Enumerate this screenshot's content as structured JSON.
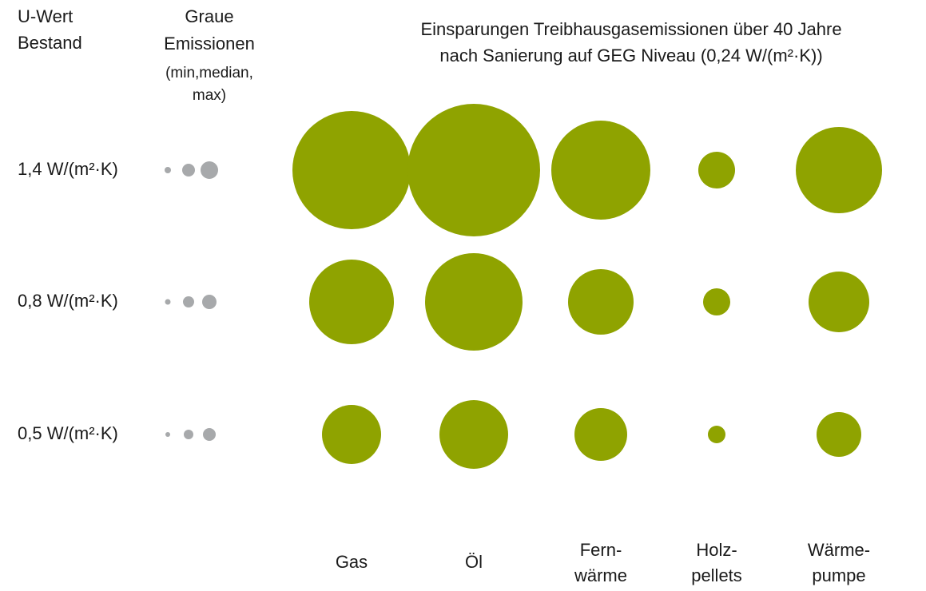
{
  "chart_data": {
    "type": "bubble",
    "title": [
      "Einsparungen Treibhausgasemissionen über 40 Jahre",
      "nach Sanierung auf  GEG Niveau (0,24 W/(m²·K))"
    ],
    "row_header": [
      "U-Wert",
      "Bestand"
    ],
    "grey_header": [
      "Graue",
      "Emissionen"
    ],
    "grey_subheader": [
      "(min,median,",
      "max)"
    ],
    "rows": [
      "1,4 W/(m²·K)",
      "0,8 W/(m²·K)",
      "0,5 W/(m²·K)"
    ],
    "categories": [
      [
        "Gas"
      ],
      [
        "Öl"
      ],
      [
        "Fern-",
        "wärme"
      ],
      [
        "Holz-",
        "pellets"
      ],
      [
        "Wärme-",
        "pumpe"
      ]
    ],
    "series": [
      {
        "color": "#8fa300",
        "values": [
          [
            148,
            166,
            124,
            46,
            108
          ],
          [
            106,
            122,
            82,
            34,
            76
          ],
          [
            74,
            86,
            66,
            22,
            56
          ]
        ]
      }
    ],
    "grey": {
      "color": "#a7a9ab",
      "values": [
        [
          8,
          16,
          22
        ],
        [
          7,
          14,
          18
        ],
        [
          6,
          12,
          16
        ]
      ]
    }
  }
}
